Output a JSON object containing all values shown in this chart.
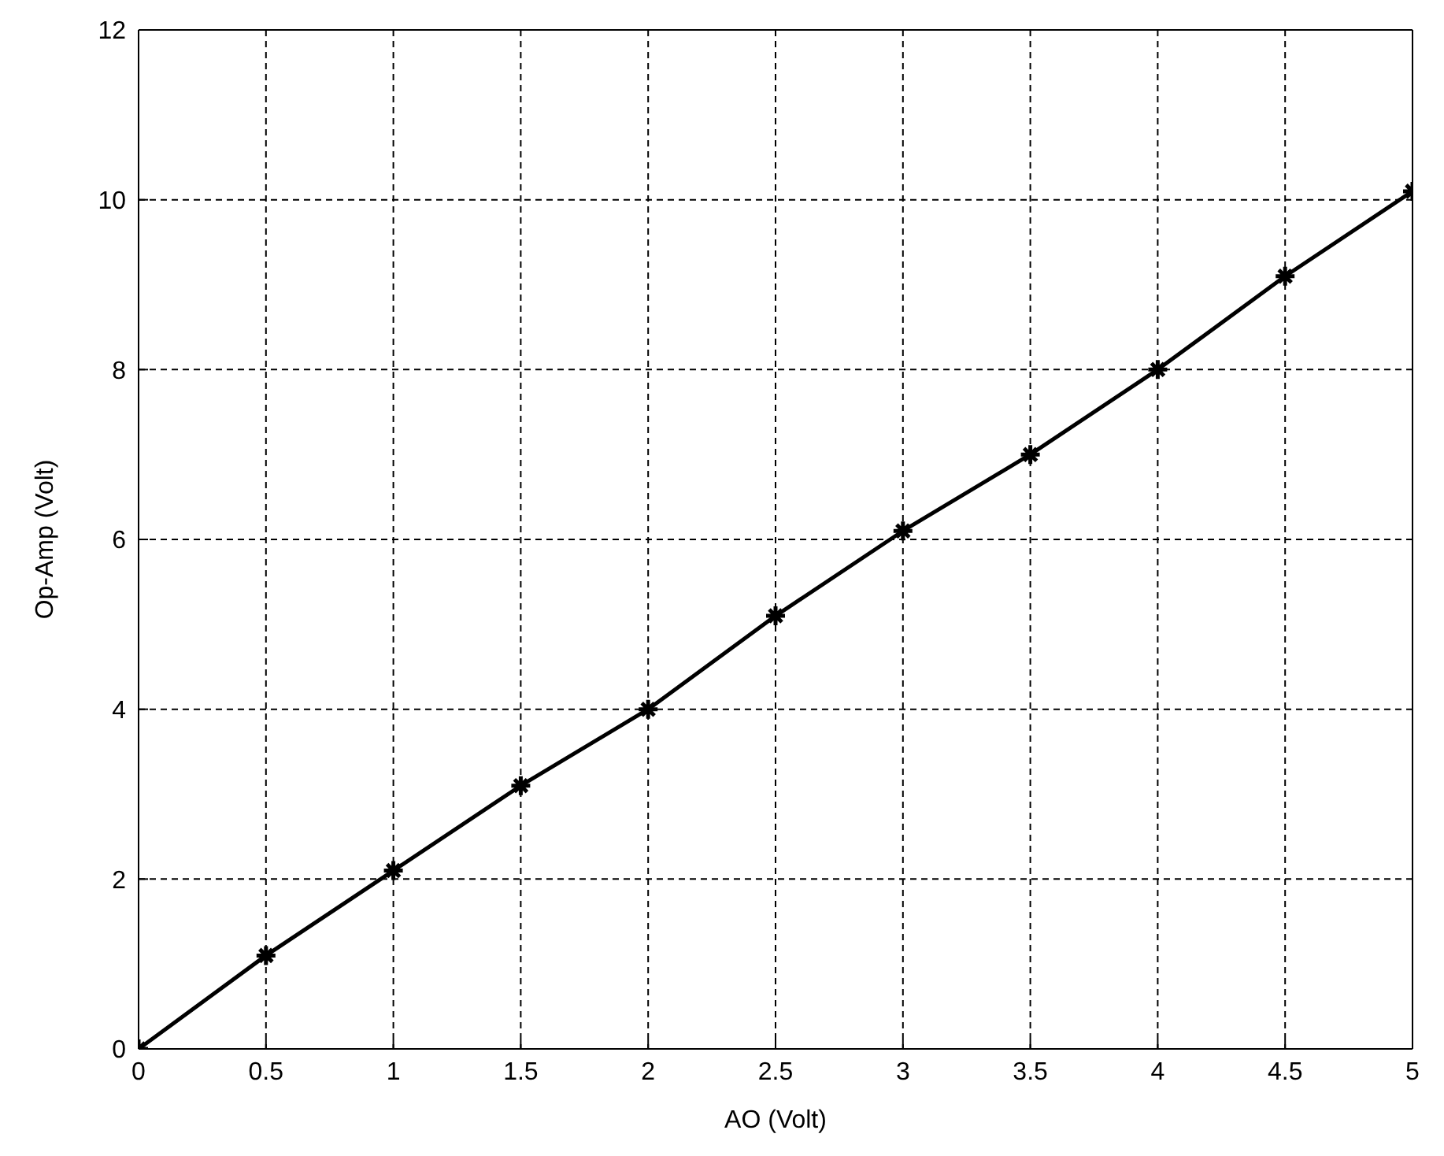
{
  "chart_data": {
    "type": "line",
    "xlabel": "AO (Volt)",
    "ylabel": "Op-Amp (Volt)",
    "x": [
      0,
      0.5,
      1,
      1.5,
      2,
      2.5,
      3,
      3.5,
      4,
      4.5,
      5
    ],
    "series": [
      {
        "color": "#000000",
        "values": [
          0,
          1.1,
          2.1,
          3.1,
          4.0,
          5.1,
          6.1,
          7.0,
          8.0,
          9.1,
          10.1
        ]
      }
    ],
    "xlim": [
      0,
      5
    ],
    "xticks": [
      0,
      0.5,
      1,
      1.5,
      2,
      2.5,
      3,
      3.5,
      4,
      4.5,
      5
    ],
    "ylim": [
      0,
      12
    ],
    "yticks": [
      0,
      2,
      4,
      6,
      8,
      10,
      12
    ],
    "grid": true,
    "marker": "cross",
    "line_style": "solid",
    "legend": false
  }
}
